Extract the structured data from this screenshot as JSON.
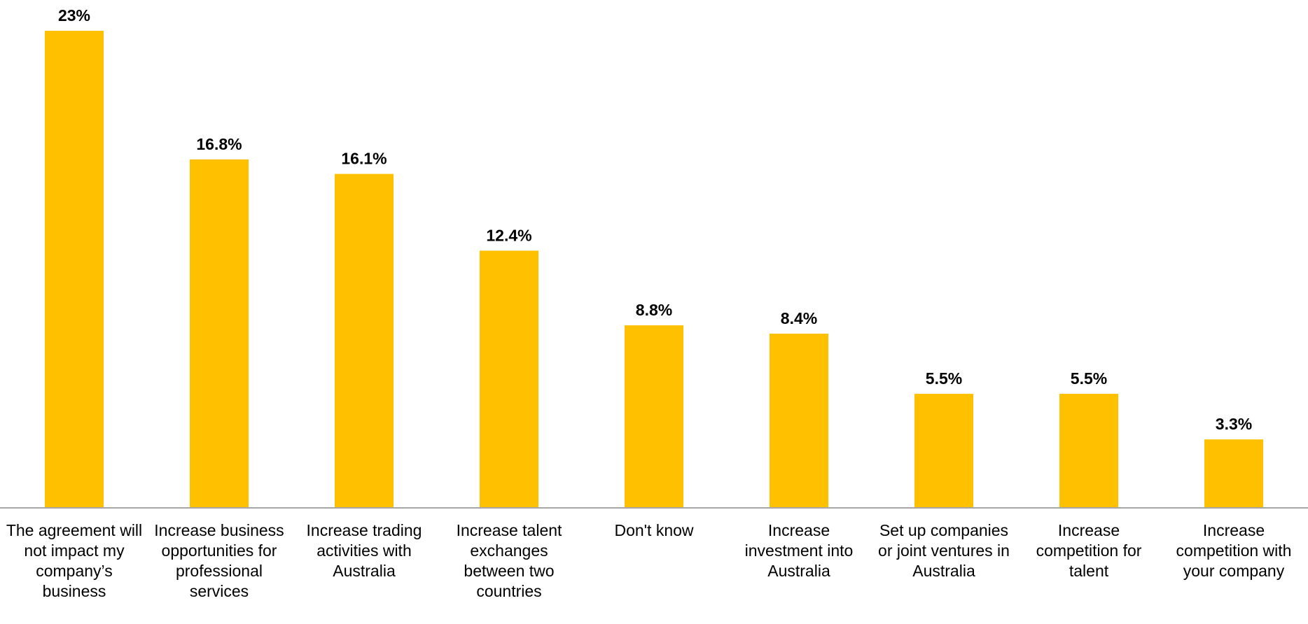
{
  "chart_data": {
    "type": "bar",
    "title": "",
    "xlabel": "",
    "ylabel": "",
    "ylim": [
      0,
      23
    ],
    "grid": false,
    "legend": "none",
    "bar_color": "#FFC000",
    "axis_color": "#A6A6A6",
    "categories": [
      "The agreement will not impact my company’s business",
      "Increase business opportunities for professional services",
      "Increase trading activities with Australia",
      "Increase talent exchanges between two countries",
      "Don't know",
      "Increase investment into Australia",
      "Set up companies or joint ventures in Australia",
      "Increase competition for talent",
      "Increase competition with your company"
    ],
    "values": [
      23,
      16.8,
      16.1,
      12.4,
      8.8,
      8.4,
      5.5,
      5.5,
      3.3
    ],
    "data_labels": [
      "23%",
      "16.8%",
      "16.1%",
      "12.4%",
      "8.8%",
      "8.4%",
      "5.5%",
      "5.5%",
      "3.3%"
    ]
  }
}
